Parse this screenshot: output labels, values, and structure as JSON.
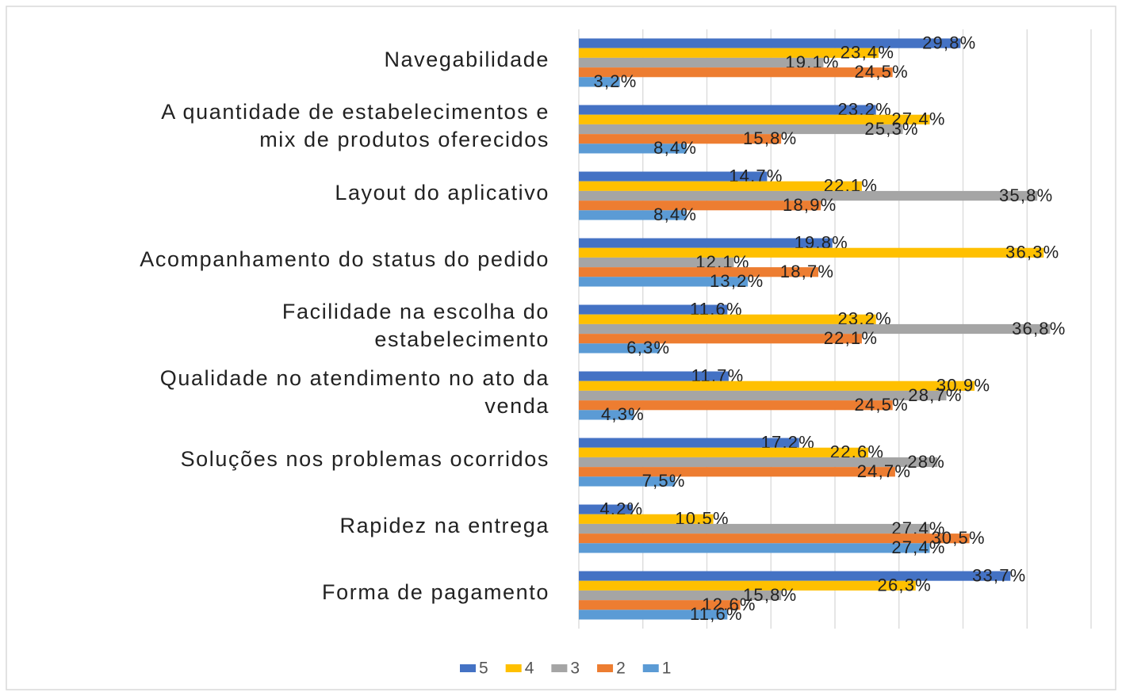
{
  "chart_data": {
    "type": "bar",
    "orientation": "horizontal",
    "categories": [
      "Navegabilidade",
      "A quantidade de estabelecimentos e\nmix de produtos oferecidos",
      "Layout do aplicativo",
      "Acompanhamento do status do pedido",
      "Facilidade na escolha do\nestabelecimento",
      "Qualidade no atendimento no ato da\nvenda",
      "Soluções nos problemas ocorridos",
      "Rapidez na entrega",
      "Forma de pagamento"
    ],
    "series": [
      {
        "name": "5",
        "color": "#4472c4",
        "values": [
          29.8,
          23.2,
          14.7,
          19.8,
          11.6,
          11.7,
          17.2,
          4.2,
          33.7
        ],
        "value_labels": [
          "29,8%",
          "23,2%",
          "14,7%",
          "19,8%",
          "11,6%",
          "11,7%",
          "17,2%",
          "4,2%",
          "33,7%"
        ]
      },
      {
        "name": "4",
        "color": "#ffc000",
        "values": [
          23.4,
          27.4,
          22.1,
          36.3,
          23.2,
          30.9,
          22.6,
          10.5,
          26.3
        ],
        "value_labels": [
          "23,4%",
          "27,4%",
          "22,1%",
          "36,3%",
          "23,2%",
          "30,9%",
          "22,6%",
          "10,5%",
          "26,3%"
        ]
      },
      {
        "name": "3",
        "color": "#a5a5a5",
        "values": [
          19.1,
          25.3,
          35.8,
          12.1,
          36.8,
          28.7,
          28,
          27.4,
          15.8
        ],
        "value_labels": [
          "19,1%",
          "25,3%",
          "35,8%",
          "12,1%",
          "36,8%",
          "28,7%",
          "28%",
          "27,4%",
          "15,8%"
        ]
      },
      {
        "name": "2",
        "color": "#ed7d31",
        "values": [
          24.5,
          15.8,
          18.9,
          18.7,
          22.1,
          24.5,
          24.7,
          30.5,
          12.6
        ],
        "value_labels": [
          "24,5%",
          "15,8%",
          "18,9%",
          "18,7%",
          "22,1%",
          "24,5%",
          "24,7%",
          "30,5%",
          "12,6%"
        ]
      },
      {
        "name": "1",
        "color": "#5b9bd5",
        "values": [
          3.2,
          8.4,
          8.4,
          13.2,
          6.3,
          4.3,
          7.5,
          27.4,
          11.6
        ],
        "value_labels": [
          "3,2%",
          "8,4%",
          "8,4%",
          "13,2%",
          "6,3%",
          "4,3%",
          "7,5%",
          "27,4%",
          "11,6%"
        ]
      }
    ],
    "xlim": [
      0,
      40
    ],
    "xticks": [
      0,
      5,
      10,
      15,
      20,
      25,
      30,
      35,
      40
    ],
    "grid": true,
    "legend": "bottom"
  }
}
